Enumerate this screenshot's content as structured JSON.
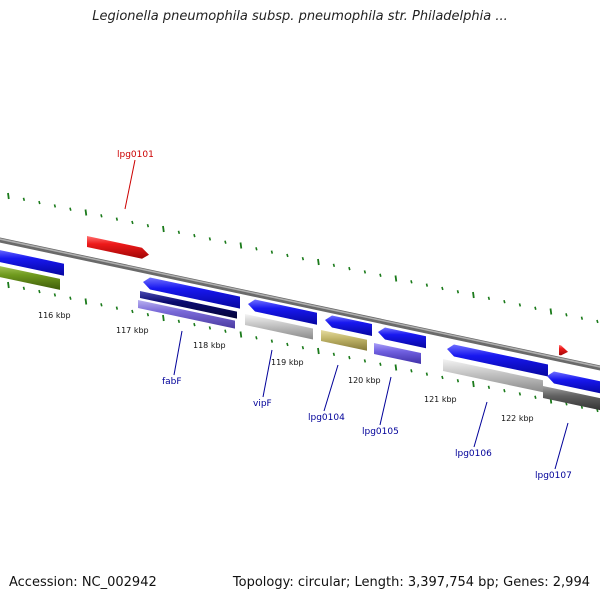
{
  "header": {
    "title": "Legionella pneumophila subsp. pneumophila str. Philadelphia ..."
  },
  "footer": {
    "accession": "Accession: NC_002942",
    "summary": "Topology: circular; Length: 3,397,754 bp; Genes: 2,994"
  },
  "colors": {
    "backbone": "#8a8a8a",
    "tick": "#1a7a1a",
    "label_blue": "#000099",
    "label_red": "#cc0000",
    "blue_cds": "#1010e8",
    "red_feature": "#e81010",
    "olive": "#6f9a1e",
    "navy": "#0a0a70",
    "lavender": "#7a6ad8",
    "silver": "#c0c0c0",
    "khaki": "#c2b66a",
    "purple": "#7060e0",
    "darkgray": "#606060"
  },
  "scale_labels": [
    {
      "text": "116 kbp"
    },
    {
      "text": "117 kbp"
    },
    {
      "text": "118 kbp"
    },
    {
      "text": "119 kbp"
    },
    {
      "text": "120 kbp"
    },
    {
      "text": "121 kbp"
    },
    {
      "text": "122 kbp"
    }
  ],
  "gene_labels": [
    {
      "text": "lpg0101",
      "color": "red"
    },
    {
      "text": "fabF",
      "color": "blue"
    },
    {
      "text": "vipF",
      "color": "blue"
    },
    {
      "text": "lpg0104",
      "color": "blue"
    },
    {
      "text": "lpg0105",
      "color": "blue"
    },
    {
      "text": "lpg0106",
      "color": "blue"
    },
    {
      "text": "lpg0107",
      "color": "blue"
    }
  ]
}
